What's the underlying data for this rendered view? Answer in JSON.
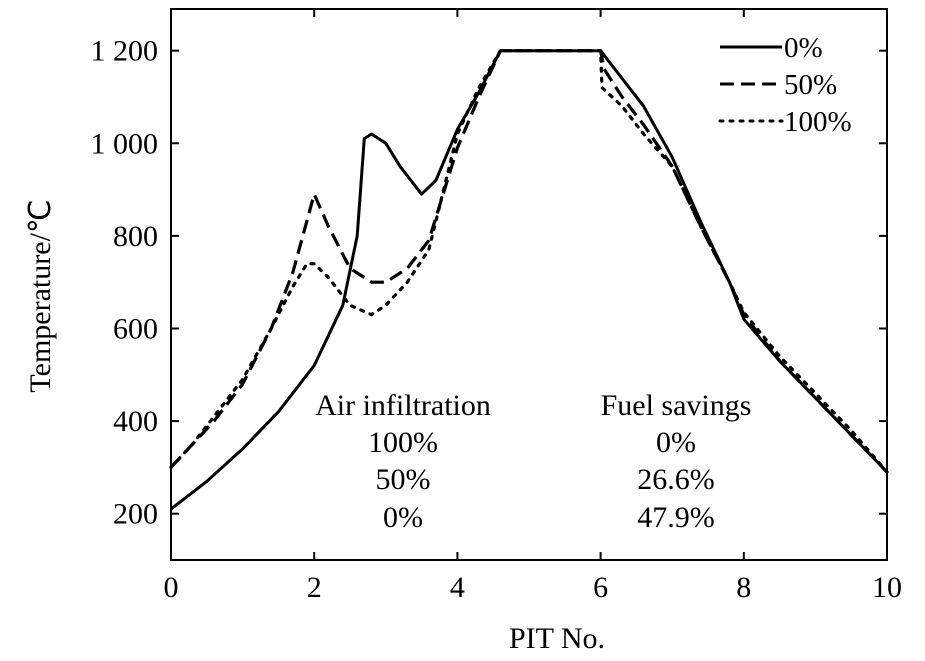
{
  "chart_data": {
    "type": "line",
    "xlabel": "PIT No.",
    "ylabel": "Temperature/℃",
    "xlim": [
      0,
      10
    ],
    "ylim": [
      100,
      1290
    ],
    "xticks": [
      0,
      2,
      4,
      6,
      8,
      10
    ],
    "xtick_labels": [
      "0",
      "2",
      "4",
      "6",
      "8",
      "10"
    ],
    "yticks": [
      200,
      400,
      600,
      800,
      1000,
      1200
    ],
    "ytick_labels": [
      "200",
      "400",
      "600",
      "800",
      "1 000",
      "1 200"
    ],
    "grid": false,
    "legend": "top-right",
    "series": [
      {
        "name": "0%",
        "style": "solid",
        "x": [
          0,
          0.5,
          1.0,
          1.5,
          2.0,
          2.4,
          2.6,
          2.7,
          2.8,
          3.0,
          3.2,
          3.5,
          3.7,
          4.0,
          4.3,
          4.6,
          6.0,
          6.3,
          6.6,
          7.0,
          7.4,
          7.8,
          8.0,
          8.5,
          9.0,
          9.5,
          10.0
        ],
        "y": [
          210,
          270,
          340,
          420,
          520,
          650,
          800,
          1010,
          1020,
          1000,
          950,
          890,
          920,
          1030,
          1110,
          1200,
          1200,
          1140,
          1080,
          970,
          830,
          700,
          620,
          530,
          450,
          370,
          290
        ]
      },
      {
        "name": "50%",
        "style": "dashed",
        "x": [
          0,
          0.3,
          0.6,
          1.0,
          1.4,
          1.7,
          2.0,
          2.2,
          2.5,
          2.8,
          3.0,
          3.3,
          3.6,
          4.0,
          4.3,
          4.6,
          6.0,
          6.05,
          6.3,
          6.6,
          7.0,
          7.4,
          7.8,
          8.0,
          8.5,
          9.0,
          9.5,
          10.0
        ],
        "y": [
          300,
          350,
          400,
          480,
          600,
          720,
          890,
          820,
          730,
          700,
          700,
          730,
          790,
          990,
          1100,
          1200,
          1200,
          1160,
          1100,
          1040,
          950,
          820,
          700,
          630,
          530,
          450,
          370,
          290
        ]
      },
      {
        "name": "100%",
        "style": "dotted",
        "x": [
          0,
          0.3,
          0.6,
          1.0,
          1.4,
          1.7,
          1.9,
          2.0,
          2.2,
          2.5,
          2.8,
          3.0,
          3.3,
          3.6,
          4.0,
          4.3,
          4.6,
          6.0,
          6.02,
          6.3,
          6.6,
          7.0,
          7.4,
          7.8,
          8.0,
          8.5,
          9.0,
          9.5,
          10.0
        ],
        "y": [
          300,
          350,
          410,
          490,
          600,
          690,
          740,
          740,
          710,
          650,
          630,
          650,
          700,
          770,
          1020,
          1120,
          1200,
          1200,
          1120,
          1080,
          1020,
          950,
          820,
          700,
          635,
          540,
          460,
          380,
          290
        ]
      }
    ],
    "annotations": {
      "air_title": "Air infiltration",
      "air_values": [
        "100%",
        "50%",
        "0%"
      ],
      "fuel_title": "Fuel savings",
      "fuel_values": [
        "0%",
        "26.6%",
        "47.9%"
      ]
    }
  }
}
